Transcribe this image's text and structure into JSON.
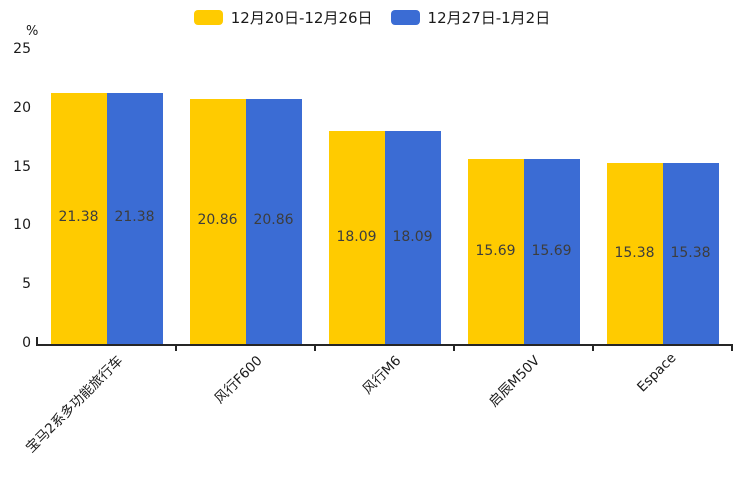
{
  "chart_data": {
    "type": "bar",
    "title": "",
    "xlabel": "",
    "ylabel": "%",
    "unit_label": "%",
    "categories": [
      "宝马2系多功能旅行车",
      "风行F600",
      "风行M6",
      "启辰M50V",
      "Espace"
    ],
    "series": [
      {
        "name": "12月20日-12月26日",
        "color": "#FFCB00",
        "values": [
          21.38,
          20.86,
          18.09,
          15.69,
          15.38
        ]
      },
      {
        "name": "12月27日-1月2日",
        "color": "#3B6CD4",
        "values": [
          21.38,
          20.86,
          18.09,
          15.69,
          15.38
        ]
      }
    ],
    "value_labels": [
      [
        "21.38",
        "20.86",
        "18.09",
        "15.69",
        "15.38"
      ],
      [
        "21.38",
        "20.86",
        "18.09",
        "15.69",
        "15.38"
      ]
    ],
    "ylim": [
      0,
      25
    ],
    "yticks": [
      0,
      5,
      10,
      15,
      20,
      25
    ],
    "grid": false,
    "legend_position": "top-center",
    "value_labels_shown": true
  },
  "colors": {
    "axis": "#262626",
    "tick_label": "#1a1a1a",
    "value_label": "#3d3d3d",
    "series_1": "#FFCB00",
    "series_2": "#3B6CD4"
  }
}
